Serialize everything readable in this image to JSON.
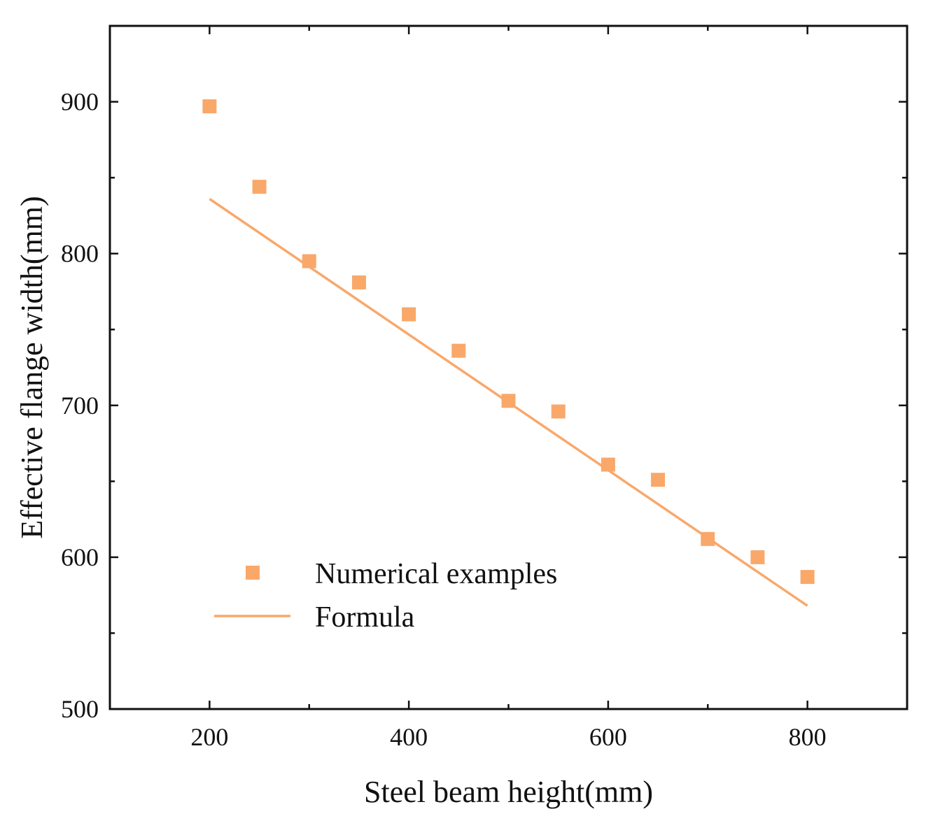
{
  "chart_data": {
    "type": "scatter",
    "title": "",
    "xlabel": "Steel beam height(mm)",
    "ylabel": "Effective flange width(mm)",
    "xlim": [
      100,
      900
    ],
    "ylim": [
      500,
      950
    ],
    "xticks": [
      200,
      400,
      600,
      800
    ],
    "yticks": [
      500,
      600,
      700,
      800,
      900
    ],
    "xtick_labels": [
      "200",
      "400",
      "600",
      "800"
    ],
    "ytick_labels": [
      "500",
      "600",
      "700",
      "800",
      "900"
    ],
    "grid": false,
    "legend_position": "bottom-left",
    "series": [
      {
        "name": "Numerical examples",
        "kind": "scatter",
        "marker": "square",
        "color": "#F9A86A",
        "x": [
          200,
          250,
          300,
          350,
          400,
          450,
          500,
          550,
          600,
          650,
          700,
          750,
          800
        ],
        "y": [
          897,
          844,
          795,
          781,
          760,
          736,
          703,
          696,
          661,
          651,
          612,
          600,
          587
        ]
      },
      {
        "name": "Formula",
        "kind": "line",
        "color": "#F9A86A",
        "x": [
          200,
          800
        ],
        "y": [
          836,
          568
        ]
      }
    ]
  }
}
